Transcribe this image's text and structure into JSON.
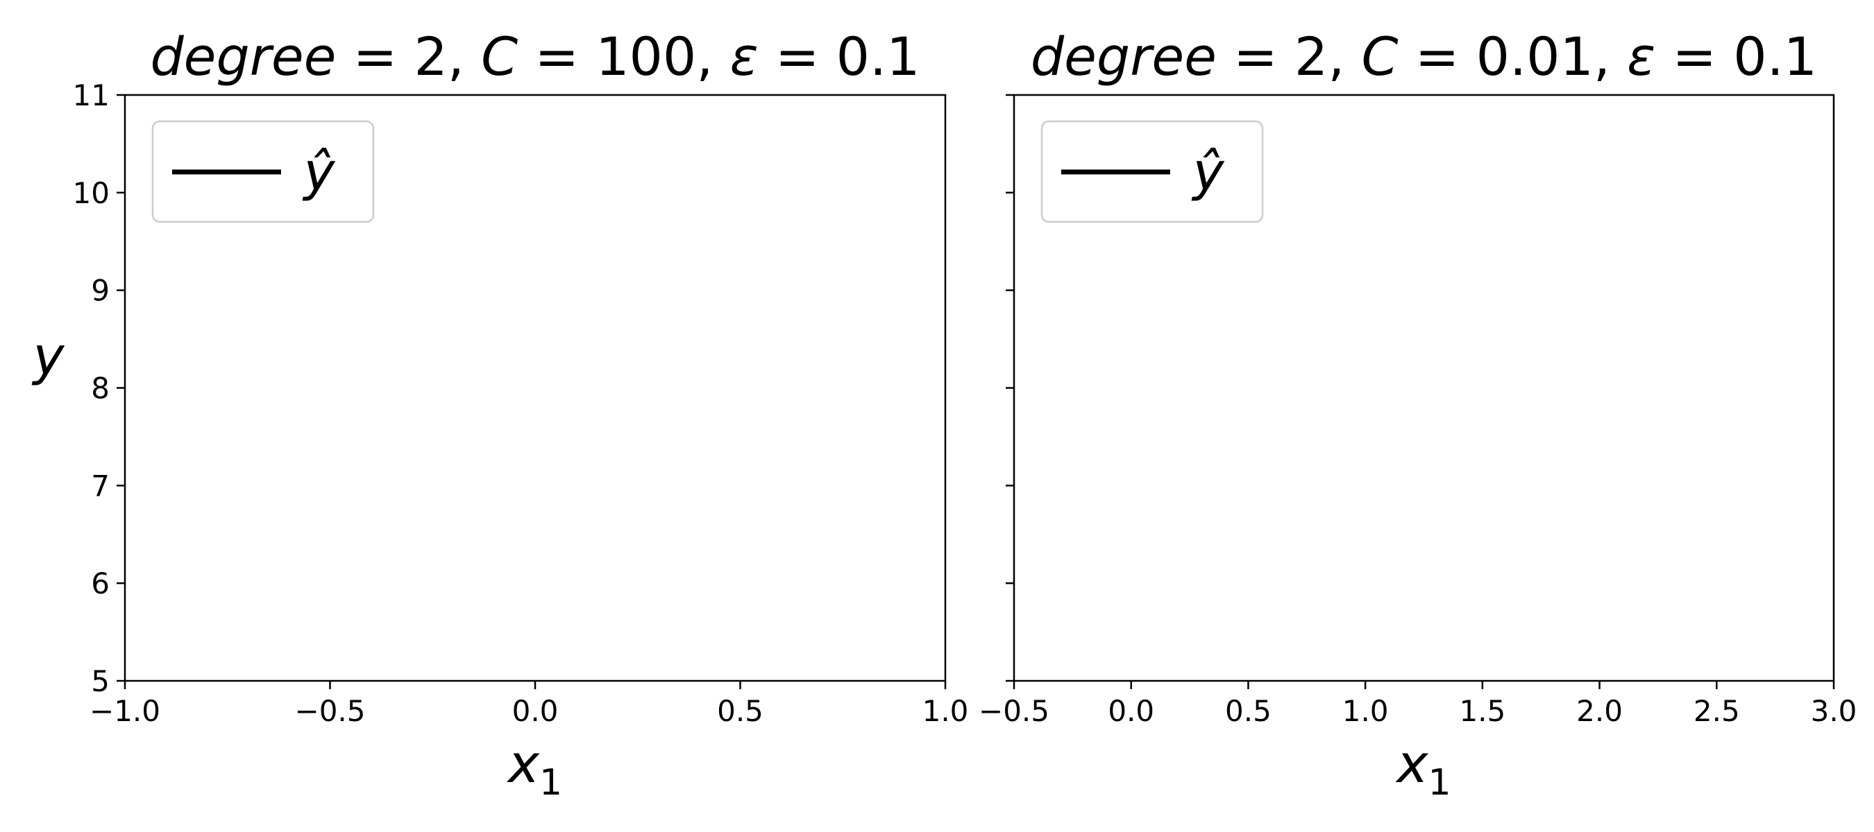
{
  "chart_data": [
    {
      "type": "line",
      "title": "degree = 2, C = 100, ε = 0.1",
      "title_parts": {
        "param1": "degree",
        "v1": "2",
        "param2": "C",
        "v2": "100",
        "param3": "ε",
        "v3": "0.1"
      },
      "xlabel": "x",
      "xlabel_sub": "1",
      "ylabel": "y",
      "xlim": [
        -1.0,
        1.0
      ],
      "ylim": [
        5,
        11
      ],
      "xticks": [
        -1.0,
        -0.5,
        0.0,
        0.5,
        1.0
      ],
      "xtick_labels": [
        "−1.0",
        "−0.5",
        "0.0",
        "0.5",
        "1.0"
      ],
      "yticks": [
        5,
        6,
        7,
        8,
        9,
        10,
        11
      ],
      "ytick_labels": [
        "5",
        "6",
        "7",
        "8",
        "9",
        "10",
        "11"
      ],
      "grid": false,
      "legend": {
        "position": "upper-left",
        "entries": [
          {
            "label": "ŷ",
            "color": "#000000",
            "style": "solid"
          }
        ]
      },
      "series": [
        {
          "name": "ŷ",
          "color": "#000000",
          "x": [],
          "y": []
        }
      ]
    },
    {
      "type": "line",
      "title": "degree = 2, C = 0.01, ε = 0.1",
      "title_parts": {
        "param1": "degree",
        "v1": "2",
        "param2": "C",
        "v2": "0.01",
        "param3": "ε",
        "v3": "0.1"
      },
      "xlabel": "x",
      "xlabel_sub": "1",
      "ylabel": "",
      "xlim": [
        -0.5,
        3.0
      ],
      "ylim": [
        5,
        11
      ],
      "xticks": [
        -0.5,
        0.0,
        0.5,
        1.0,
        1.5,
        2.0,
        2.5,
        3.0
      ],
      "xtick_labels": [
        "−0.5",
        "0.0",
        "0.5",
        "1.0",
        "1.5",
        "2.0",
        "2.5",
        "3.0"
      ],
      "yticks": [
        5,
        6,
        7,
        8,
        9,
        10,
        11
      ],
      "ytick_labels": [],
      "grid": false,
      "legend": {
        "position": "upper-left",
        "entries": [
          {
            "label": "ŷ",
            "color": "#000000",
            "style": "solid"
          }
        ]
      },
      "series": [
        {
          "name": "ŷ",
          "color": "#000000",
          "x": [],
          "y": []
        }
      ]
    }
  ]
}
